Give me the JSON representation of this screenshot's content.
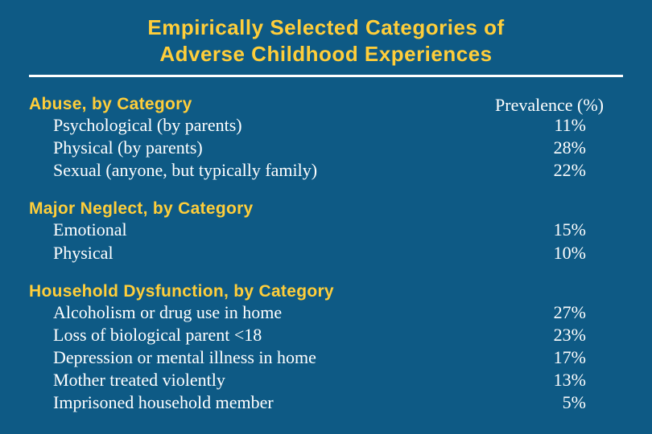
{
  "colors": {
    "background": "#0e5a85",
    "title_color": "#ffce3a",
    "header_color": "#ffce3a",
    "text_color": "#ffffff",
    "rule_color": "#ffffff"
  },
  "typography": {
    "title_font": "Verdana",
    "title_size_pt": 26,
    "title_weight": "bold",
    "header_font": "Verdana",
    "header_size_pt": 21,
    "body_font": "Times New Roman",
    "body_size_pt": 22
  },
  "title_line1": "Empirically Selected Categories of",
  "title_line2": "Adverse Childhood Experiences",
  "prevalence_header": "Prevalence (%)",
  "sections": [
    {
      "header": "Abuse, by Category",
      "items": [
        {
          "label": "Psychological (by parents)",
          "value": "11%"
        },
        {
          "label": "Physical (by parents)",
          "value": "28%"
        },
        {
          "label": "Sexual (anyone, but typically family)",
          "value": "22%"
        }
      ]
    },
    {
      "header": "Major Neglect, by Category",
      "items": [
        {
          "label": "Emotional",
          "value": "15%"
        },
        {
          "label": "Physical",
          "value": "10%"
        }
      ]
    },
    {
      "header": "Household Dysfunction, by Category",
      "items": [
        {
          "label": "Alcoholism or drug use in home",
          "value": "27%"
        },
        {
          "label": "Loss of biological parent <18",
          "value": "23%"
        },
        {
          "label": "Depression or mental illness in home",
          "value": "17%"
        },
        {
          "label": "Mother treated violently",
          "value": "13%"
        },
        {
          "label": "Imprisoned household member",
          "value": "5%"
        }
      ]
    }
  ]
}
